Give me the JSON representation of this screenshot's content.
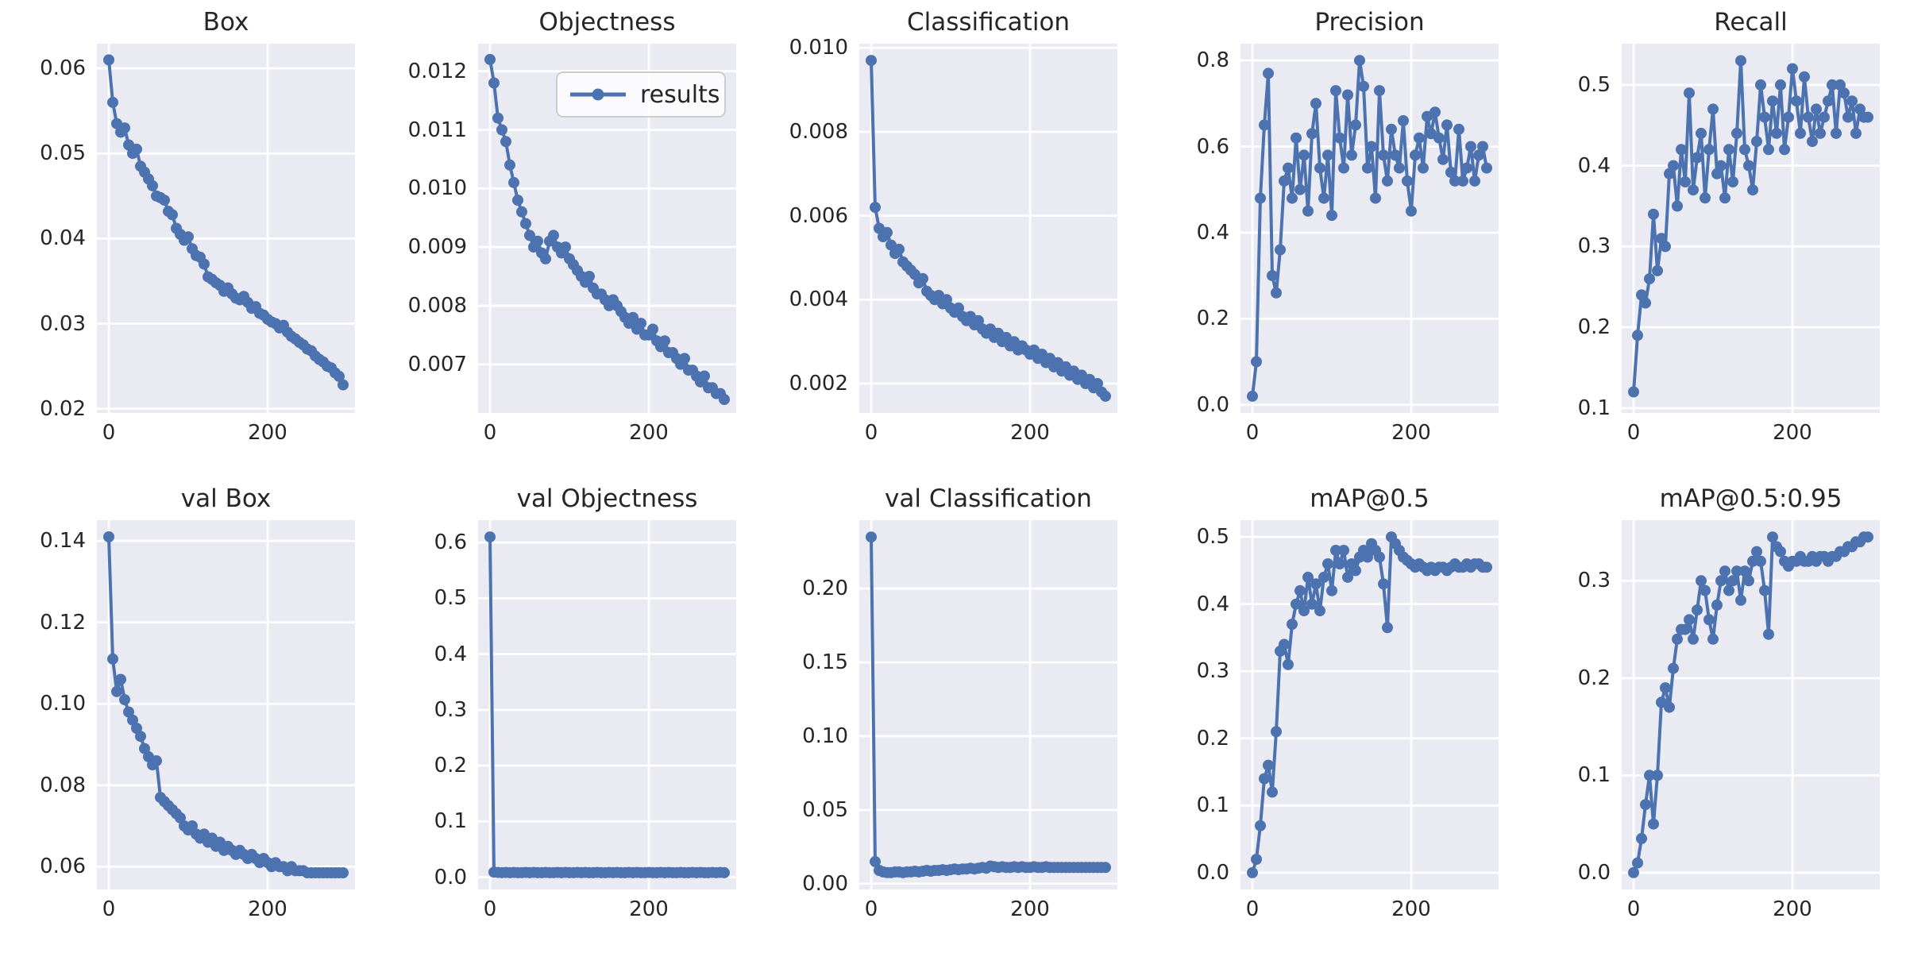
{
  "figure": {
    "background": "#ffffff",
    "axes_background": "#eaeaf2",
    "grid_color": "#ffffff",
    "line_color": "#4c72b0",
    "text_color": "#262626",
    "legend": {
      "label": "results",
      "border_color": "#cccccc",
      "background": "rgba(255,255,255,0.8)"
    }
  },
  "chart_data": {
    "type": "line",
    "series_name": "results",
    "layout": {
      "rows": 2,
      "cols": 5,
      "grid": true,
      "marker": "circle",
      "legend_position": "upper-right of Objectness subplot"
    },
    "x": [
      0,
      5,
      10,
      15,
      20,
      25,
      30,
      35,
      40,
      45,
      50,
      55,
      60,
      65,
      70,
      75,
      80,
      85,
      90,
      95,
      100,
      105,
      110,
      115,
      120,
      125,
      130,
      135,
      140,
      145,
      150,
      155,
      160,
      165,
      170,
      175,
      180,
      185,
      190,
      195,
      200,
      205,
      210,
      215,
      220,
      225,
      230,
      235,
      240,
      245,
      250,
      255,
      260,
      265,
      270,
      275,
      280,
      285,
      290,
      295
    ],
    "x_ticks": [
      "0",
      "200"
    ],
    "xlim": [
      -15,
      310
    ],
    "charts": [
      {
        "title": "Box",
        "legend": false,
        "y_ticks": [
          "0.02",
          "0.03",
          "0.04",
          "0.05",
          "0.06"
        ],
        "ylim": [
          0.0195,
          0.0629
        ],
        "values": [
          0.061,
          0.056,
          0.0535,
          0.0525,
          0.053,
          0.051,
          0.05,
          0.0505,
          0.0485,
          0.0478,
          0.047,
          0.0462,
          0.045,
          0.0448,
          0.0445,
          0.0432,
          0.0428,
          0.0412,
          0.0405,
          0.0398,
          0.0402,
          0.0388,
          0.038,
          0.0378,
          0.037,
          0.0355,
          0.0352,
          0.0348,
          0.0345,
          0.0338,
          0.0342,
          0.0335,
          0.033,
          0.0328,
          0.0332,
          0.0325,
          0.0318,
          0.032,
          0.0312,
          0.031,
          0.0305,
          0.0302,
          0.03,
          0.0295,
          0.0298,
          0.029,
          0.0285,
          0.0282,
          0.0278,
          0.0275,
          0.027,
          0.0268,
          0.0262,
          0.0258,
          0.0255,
          0.025,
          0.0248,
          0.0242,
          0.0238,
          0.0228
        ]
      },
      {
        "title": "Objectness",
        "legend": true,
        "y_ticks": [
          "0.007",
          "0.008",
          "0.009",
          "0.010",
          "0.011",
          "0.012"
        ],
        "ylim": [
          0.00617,
          0.01247
        ],
        "values": [
          0.0122,
          0.0118,
          0.0112,
          0.011,
          0.0108,
          0.0104,
          0.0101,
          0.0098,
          0.0096,
          0.0094,
          0.0092,
          0.009,
          0.0091,
          0.0089,
          0.0088,
          0.0091,
          0.0092,
          0.009,
          0.0089,
          0.009,
          0.0088,
          0.0087,
          0.0086,
          0.0085,
          0.0084,
          0.0085,
          0.0083,
          0.0082,
          0.0082,
          0.0081,
          0.008,
          0.0081,
          0.008,
          0.0079,
          0.0078,
          0.0077,
          0.0078,
          0.0076,
          0.0077,
          0.0075,
          0.0075,
          0.0076,
          0.0074,
          0.0073,
          0.0074,
          0.0072,
          0.0072,
          0.0071,
          0.007,
          0.0071,
          0.0069,
          0.0069,
          0.0068,
          0.0067,
          0.0068,
          0.0066,
          0.0066,
          0.0065,
          0.0065,
          0.0064
        ]
      },
      {
        "title": "Classification",
        "legend": false,
        "y_ticks": [
          "0.002",
          "0.004",
          "0.006",
          "0.008",
          "0.010"
        ],
        "ylim": [
          0.0013,
          0.0101
        ],
        "values": [
          0.0097,
          0.0062,
          0.0057,
          0.0055,
          0.0056,
          0.0053,
          0.0051,
          0.0052,
          0.0049,
          0.0048,
          0.0047,
          0.0046,
          0.0044,
          0.0045,
          0.0042,
          0.0041,
          0.004,
          0.0041,
          0.0039,
          0.004,
          0.0038,
          0.0037,
          0.0038,
          0.0036,
          0.0035,
          0.0036,
          0.0034,
          0.0035,
          0.0033,
          0.0032,
          0.0033,
          0.0031,
          0.0032,
          0.003,
          0.0031,
          0.0029,
          0.003,
          0.0028,
          0.0029,
          0.0028,
          0.0027,
          0.0028,
          0.0026,
          0.0027,
          0.0025,
          0.0026,
          0.0024,
          0.0025,
          0.0023,
          0.0024,
          0.0022,
          0.0023,
          0.0021,
          0.0022,
          0.002,
          0.0021,
          0.0019,
          0.002,
          0.0018,
          0.0017
        ]
      },
      {
        "title": "Precision",
        "legend": false,
        "y_ticks": [
          "0.0",
          "0.2",
          "0.4",
          "0.6",
          "0.8"
        ],
        "ylim": [
          -0.019,
          0.839
        ],
        "values": [
          0.02,
          0.1,
          0.48,
          0.65,
          0.77,
          0.3,
          0.26,
          0.36,
          0.52,
          0.55,
          0.48,
          0.62,
          0.5,
          0.58,
          0.45,
          0.63,
          0.7,
          0.55,
          0.48,
          0.58,
          0.44,
          0.73,
          0.62,
          0.55,
          0.72,
          0.58,
          0.65,
          0.8,
          0.74,
          0.55,
          0.6,
          0.48,
          0.73,
          0.58,
          0.52,
          0.64,
          0.58,
          0.55,
          0.66,
          0.52,
          0.45,
          0.58,
          0.62,
          0.55,
          0.67,
          0.63,
          0.68,
          0.62,
          0.57,
          0.65,
          0.54,
          0.52,
          0.64,
          0.52,
          0.55,
          0.6,
          0.52,
          0.58,
          0.6,
          0.55
        ]
      },
      {
        "title": "Recall",
        "legend": false,
        "y_ticks": [
          "0.1",
          "0.2",
          "0.3",
          "0.4",
          "0.5"
        ],
        "ylim": [
          0.094,
          0.551
        ],
        "values": [
          0.12,
          0.19,
          0.24,
          0.23,
          0.26,
          0.34,
          0.27,
          0.31,
          0.3,
          0.39,
          0.4,
          0.35,
          0.42,
          0.38,
          0.49,
          0.37,
          0.41,
          0.44,
          0.36,
          0.42,
          0.47,
          0.39,
          0.4,
          0.36,
          0.42,
          0.38,
          0.44,
          0.53,
          0.42,
          0.4,
          0.37,
          0.43,
          0.5,
          0.46,
          0.42,
          0.48,
          0.44,
          0.5,
          0.42,
          0.46,
          0.52,
          0.48,
          0.44,
          0.51,
          0.46,
          0.43,
          0.47,
          0.44,
          0.46,
          0.48,
          0.5,
          0.44,
          0.5,
          0.49,
          0.46,
          0.48,
          0.44,
          0.47,
          0.46,
          0.46
        ]
      },
      {
        "title": "val Box",
        "legend": false,
        "y_ticks": [
          "0.06",
          "0.08",
          "0.10",
          "0.12",
          "0.14"
        ],
        "ylim": [
          0.0544,
          0.1451
        ],
        "values": [
          0.141,
          0.111,
          0.103,
          0.106,
          0.101,
          0.098,
          0.096,
          0.094,
          0.092,
          0.089,
          0.087,
          0.085,
          0.086,
          0.077,
          0.076,
          0.075,
          0.074,
          0.073,
          0.072,
          0.07,
          0.069,
          0.07,
          0.068,
          0.067,
          0.068,
          0.066,
          0.067,
          0.065,
          0.066,
          0.064,
          0.065,
          0.064,
          0.063,
          0.064,
          0.063,
          0.062,
          0.063,
          0.062,
          0.061,
          0.062,
          0.061,
          0.06,
          0.061,
          0.06,
          0.06,
          0.059,
          0.06,
          0.059,
          0.059,
          0.059,
          0.0585,
          0.0585,
          0.0585,
          0.0585,
          0.0585,
          0.0585,
          0.0585,
          0.0585,
          0.0585,
          0.0585
        ]
      },
      {
        "title": "val Objectness",
        "legend": false,
        "y_ticks": [
          "0.0",
          "0.1",
          "0.2",
          "0.3",
          "0.4",
          "0.5",
          "0.6"
        ],
        "ylim": [
          -0.022,
          0.64
        ],
        "values": [
          0.61,
          0.009,
          0.0085,
          0.008,
          0.0085,
          0.008,
          0.0085,
          0.008,
          0.008,
          0.0085,
          0.008,
          0.0085,
          0.008,
          0.008,
          0.0085,
          0.008,
          0.008,
          0.0085,
          0.008,
          0.0085,
          0.008,
          0.008,
          0.0085,
          0.008,
          0.0085,
          0.008,
          0.008,
          0.0085,
          0.008,
          0.008,
          0.0085,
          0.008,
          0.0085,
          0.008,
          0.008,
          0.0085,
          0.008,
          0.0085,
          0.008,
          0.008,
          0.0085,
          0.008,
          0.008,
          0.0085,
          0.008,
          0.0085,
          0.008,
          0.008,
          0.0085,
          0.008,
          0.008,
          0.0085,
          0.008,
          0.0085,
          0.008,
          0.008,
          0.0085,
          0.008,
          0.0085,
          0.008
        ]
      },
      {
        "title": "val Classification",
        "legend": false,
        "y_ticks": [
          "0.00",
          "0.05",
          "0.10",
          "0.15",
          "0.20"
        ],
        "ylim": [
          -0.0039,
          0.2464
        ],
        "values": [
          0.235,
          0.015,
          0.009,
          0.008,
          0.0075,
          0.0075,
          0.008,
          0.008,
          0.0075,
          0.008,
          0.008,
          0.0085,
          0.008,
          0.0085,
          0.009,
          0.0085,
          0.009,
          0.009,
          0.0095,
          0.009,
          0.0095,
          0.01,
          0.0095,
          0.01,
          0.01,
          0.0105,
          0.01,
          0.0105,
          0.011,
          0.0105,
          0.012,
          0.0115,
          0.011,
          0.0115,
          0.011,
          0.011,
          0.0115,
          0.011,
          0.0115,
          0.011,
          0.011,
          0.0115,
          0.011,
          0.011,
          0.0115,
          0.011,
          0.011,
          0.011,
          0.011,
          0.011,
          0.011,
          0.011,
          0.011,
          0.011,
          0.011,
          0.011,
          0.011,
          0.011,
          0.011,
          0.011
        ]
      },
      {
        "title": "mAP@0.5",
        "legend": false,
        "y_ticks": [
          "0.0",
          "0.1",
          "0.2",
          "0.3",
          "0.4",
          "0.5"
        ],
        "ylim": [
          -0.025,
          0.525
        ],
        "values": [
          0.0,
          0.02,
          0.07,
          0.14,
          0.16,
          0.12,
          0.21,
          0.33,
          0.34,
          0.31,
          0.37,
          0.4,
          0.42,
          0.39,
          0.44,
          0.4,
          0.43,
          0.39,
          0.44,
          0.46,
          0.42,
          0.48,
          0.46,
          0.48,
          0.44,
          0.46,
          0.45,
          0.47,
          0.48,
          0.47,
          0.49,
          0.48,
          0.47,
          0.43,
          0.365,
          0.5,
          0.49,
          0.48,
          0.47,
          0.465,
          0.46,
          0.455,
          0.46,
          0.455,
          0.45,
          0.455,
          0.45,
          0.455,
          0.455,
          0.45,
          0.455,
          0.46,
          0.455,
          0.455,
          0.46,
          0.455,
          0.46,
          0.46,
          0.455,
          0.455
        ]
      },
      {
        "title": "mAP@0.5:0.95",
        "legend": false,
        "y_ticks": [
          "0.0",
          "0.1",
          "0.2",
          "0.3"
        ],
        "ylim": [
          -0.0173,
          0.3623
        ],
        "values": [
          0.0,
          0.01,
          0.035,
          0.07,
          0.1,
          0.05,
          0.1,
          0.175,
          0.19,
          0.17,
          0.21,
          0.24,
          0.25,
          0.25,
          0.26,
          0.24,
          0.27,
          0.3,
          0.29,
          0.26,
          0.24,
          0.275,
          0.3,
          0.31,
          0.29,
          0.3,
          0.31,
          0.28,
          0.31,
          0.3,
          0.32,
          0.33,
          0.32,
          0.29,
          0.245,
          0.345,
          0.335,
          0.33,
          0.32,
          0.315,
          0.32,
          0.32,
          0.325,
          0.32,
          0.32,
          0.325,
          0.32,
          0.325,
          0.325,
          0.32,
          0.325,
          0.325,
          0.33,
          0.33,
          0.335,
          0.335,
          0.34,
          0.34,
          0.345,
          0.345
        ]
      }
    ]
  }
}
